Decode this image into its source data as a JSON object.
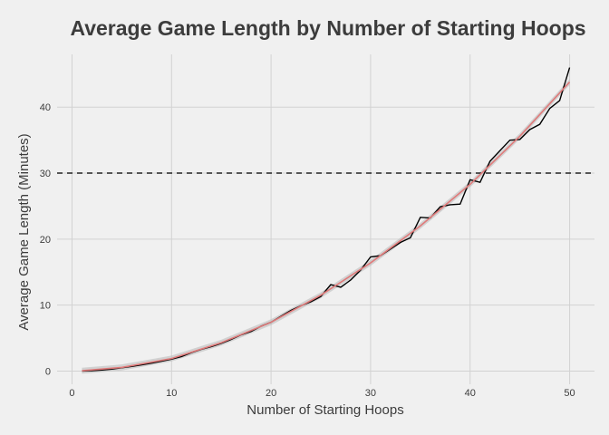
{
  "chart_data": {
    "type": "line",
    "title": "Average Game Length by Number of Starting Hoops",
    "xlabel": "Number of Starting Hoops",
    "ylabel": "Average Game Length (Minutes)",
    "xlim": [
      -1.5,
      52.5
    ],
    "ylim": [
      -2,
      48
    ],
    "x_ticks": [
      0,
      10,
      20,
      30,
      40,
      50
    ],
    "y_ticks": [
      0,
      10,
      20,
      30,
      40
    ],
    "grid": true,
    "reference_line": {
      "y": 30,
      "style": "dashed",
      "color": "#222222"
    },
    "colors": {
      "background": "#f0f0f0",
      "grid": "#d2d2d2",
      "observed": "#000000",
      "fit": "#e07a7a",
      "ribbon": "#bdbdbd"
    },
    "series": [
      {
        "style": "observed",
        "x": [
          1,
          2,
          3,
          4,
          5,
          6,
          7,
          8,
          9,
          10,
          11,
          12,
          13,
          14,
          15,
          16,
          17,
          18,
          19,
          20,
          21,
          22,
          23,
          24,
          25,
          26,
          27,
          28,
          29,
          30,
          31,
          32,
          33,
          34,
          35,
          36,
          37,
          38,
          39,
          40,
          41,
          42,
          43,
          44,
          45,
          46,
          47,
          48,
          49,
          50
        ],
        "y": [
          0.0,
          0.05,
          0.15,
          0.3,
          0.5,
          0.7,
          0.95,
          1.2,
          1.5,
          1.8,
          2.2,
          2.8,
          3.3,
          3.7,
          4.2,
          4.8,
          5.5,
          6.0,
          6.8,
          7.4,
          8.3,
          9.2,
          9.9,
          10.5,
          11.3,
          13.1,
          12.7,
          13.8,
          15.3,
          17.3,
          17.5,
          18.5,
          19.5,
          20.2,
          23.3,
          23.2,
          24.9,
          25.2,
          25.3,
          29.0,
          28.6,
          31.8,
          33.4,
          35.0,
          35.1,
          36.6,
          37.4,
          39.8,
          41.0,
          46.0
        ]
      },
      {
        "style": "fit",
        "x": [
          1,
          5,
          10,
          15,
          20,
          25,
          30,
          35,
          40,
          45,
          50
        ],
        "y": [
          0.05,
          0.55,
          1.9,
          4.3,
          7.4,
          11.5,
          16.4,
          22.0,
          28.3,
          35.6,
          43.8
        ]
      }
    ]
  }
}
